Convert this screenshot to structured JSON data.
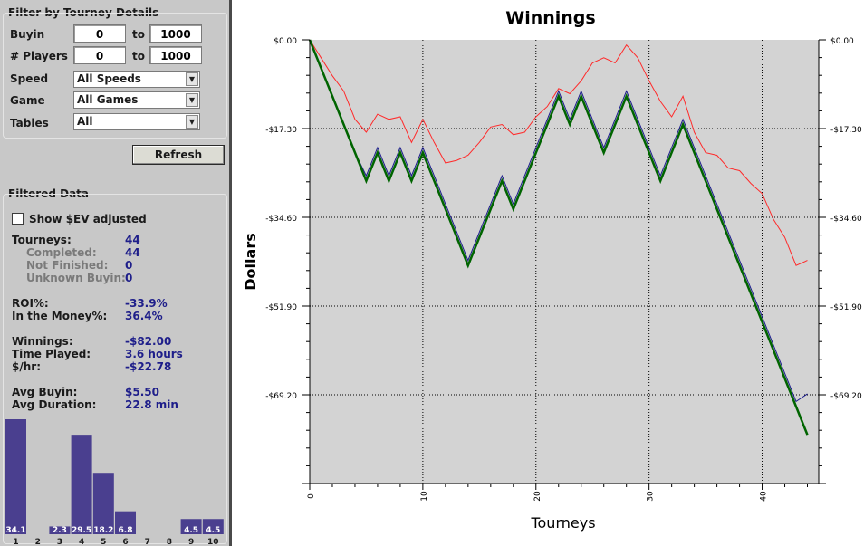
{
  "filter": {
    "title": "Filter by Tourney Details",
    "buyin_label": "Buyin",
    "buyin_min": "0",
    "buyin_to": "to",
    "buyin_max": "1000",
    "players_label": "# Players",
    "players_min": "0",
    "players_to": "to",
    "players_max": "1000",
    "speed_label": "Speed",
    "speed_value": "All Speeds",
    "game_label": "Game",
    "game_value": "All Games",
    "tables_label": "Tables",
    "tables_value": "All",
    "refresh_label": "Refresh"
  },
  "filtered": {
    "title": "Filtered Data",
    "show_ev_label": "Show $EV adjusted",
    "show_ev_checked": false,
    "tourneys_label": "Tourneys:",
    "tourneys_value": "44",
    "completed_label": "Completed:",
    "completed_value": "44",
    "not_finished_label": "Not Finished:",
    "not_finished_value": "0",
    "unknown_buyin_label": "Unknown Buyin:",
    "unknown_buyin_value": "0",
    "roi_label": "ROI%:",
    "roi_value": "-33.9%",
    "itm_label": "In the Money%:",
    "itm_value": "36.4%",
    "winnings_label": "Winnings:",
    "winnings_value": "-$82.00",
    "time_label": "Time Played:",
    "time_value": "3.6 hours",
    "perhr_label": "$/hr:",
    "perhr_value": "-$22.78",
    "avg_buyin_label": "Avg Buyin:",
    "avg_buyin_value": "$5.50",
    "avg_duration_label": "Avg Duration:",
    "avg_duration_value": "22.8 min"
  },
  "colors": {
    "panel": "#c8c8c8",
    "bar": "#4a3f8f",
    "plot_bg": "#d3d3d3",
    "winnings": "#006400",
    "blue_series": "#1a1a8c",
    "red_series": "#ff2a2a"
  },
  "histogram": {
    "labels": [
      "1",
      "2",
      "3",
      "4",
      "5",
      "6",
      "7",
      "8",
      "9",
      "10"
    ],
    "values": [
      34.1,
      0,
      2.3,
      29.5,
      18.2,
      6.8,
      0,
      0,
      4.5,
      4.5
    ],
    "value_labels": [
      "34.1",
      "",
      "2.3",
      "29.5",
      "18.2",
      "6.8",
      "",
      "",
      "4.5",
      "4.5"
    ]
  },
  "chart_data": {
    "type": "line",
    "title": "Winnings",
    "xlabel": "Tourneys",
    "ylabel": "Dollars",
    "xlim": [
      0,
      45
    ],
    "ylim": [
      -86.5,
      0
    ],
    "x_ticks": [
      "0",
      "10",
      "20",
      "30",
      "40"
    ],
    "x_tick_values": [
      0,
      10,
      20,
      30,
      40
    ],
    "y_ticks": [
      "$0.00",
      "-$17.30",
      "-$34.60",
      "-$51.90",
      "-$69.20"
    ],
    "y_tick_values": [
      0,
      -17.3,
      -34.6,
      -51.9,
      -69.2
    ],
    "grid": true,
    "x": [
      0,
      1,
      2,
      3,
      4,
      5,
      6,
      7,
      8,
      9,
      10,
      11,
      12,
      13,
      14,
      15,
      16,
      17,
      18,
      19,
      20,
      21,
      22,
      23,
      24,
      25,
      26,
      27,
      28,
      29,
      30,
      31,
      32,
      33,
      34,
      35,
      36,
      37,
      38,
      39,
      40,
      41,
      42,
      43,
      44
    ],
    "series": [
      {
        "values": [
          0,
          -5.5,
          -11,
          -16.5,
          -22,
          -27.5,
          -22,
          -27.5,
          -22,
          -27.5,
          -22,
          -27.5,
          -33,
          -38.5,
          -44,
          -38.5,
          -33,
          -27.5,
          -33,
          -27.5,
          -22,
          -16.5,
          -11,
          -16.5,
          -11,
          -16.5,
          -22,
          -16.5,
          -11,
          -16.5,
          -22,
          -27.5,
          -22,
          -16.5,
          -22,
          -27.5,
          -33,
          -38.5,
          -44,
          -49.5,
          -55,
          -60.5,
          -66,
          -71.5,
          -77
        ]
      },
      {
        "values": [
          0,
          -5.5,
          -11,
          -16.5,
          -22,
          -26.5,
          -21,
          -26.5,
          -21,
          -26.5,
          -21,
          -26.5,
          -32,
          -37.5,
          -43,
          -37.5,
          -32,
          -26.5,
          -32,
          -26.5,
          -21,
          -15.5,
          -10,
          -15.5,
          -10,
          -15.5,
          -21,
          -15.5,
          -10,
          -15.5,
          -21,
          -26.5,
          -21,
          -15.5,
          -21,
          -26.5,
          -32,
          -37.5,
          -43,
          -48.5,
          -54,
          -59.5,
          -65,
          -70.5,
          -69
        ]
      },
      {
        "values": [
          0,
          -3.5,
          -7,
          -10,
          -15.5,
          -18,
          -14.5,
          -15.5,
          -15,
          -20,
          -15.5,
          -20,
          -24,
          -23.5,
          -22.5,
          -20,
          -17,
          -16.5,
          -18.5,
          -18,
          -15,
          -13,
          -9.5,
          -10.5,
          -8,
          -4.5,
          -3.5,
          -4.5,
          -1,
          -3.5,
          -8,
          -12,
          -15,
          -11,
          -18,
          -22,
          -22.5,
          -25,
          -25.5,
          -28,
          -30,
          -35,
          -38.5,
          -44,
          -43
        ]
      }
    ]
  }
}
